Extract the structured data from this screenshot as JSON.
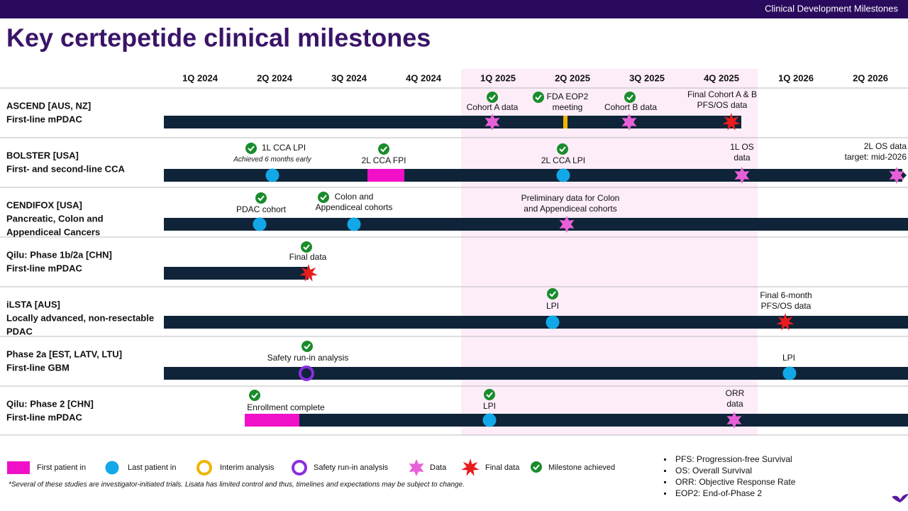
{
  "header": {
    "section": "Clinical Development Milestones",
    "title": "Key certepetide clinical milestones"
  },
  "quarters": [
    "1Q 2024",
    "2Q 2024",
    "3Q 2024",
    "4Q 2024",
    "1Q 2025",
    "2Q 2025",
    "3Q 2025",
    "4Q 2025",
    "1Q 2026",
    "2Q 2026"
  ],
  "rows": [
    {
      "label": [
        "ASCEND [AUS, NZ]",
        "First-line mPDAC"
      ],
      "events": [
        {
          "label": [
            "Cohort A data"
          ]
        },
        {
          "label": [
            "FDA EOP2",
            "meeting"
          ]
        },
        {
          "label": [
            "Cohort B data"
          ]
        },
        {
          "label": [
            "Final Cohort A & B",
            "PFS/OS data"
          ]
        }
      ]
    },
    {
      "label": [
        "BOLSTER [USA]",
        "First- and second-line CCA"
      ],
      "events": [
        {
          "label": [
            "1L CCA LPI"
          ],
          "note": "Achieved 6 months early"
        },
        {
          "label": [
            "2L CCA FPI"
          ]
        },
        {
          "label": [
            "2L CCA LPI"
          ]
        },
        {
          "label": [
            "1L OS",
            "data"
          ]
        },
        {
          "label": [
            "2L OS data",
            "target: mid-2026"
          ]
        }
      ]
    },
    {
      "label": [
        "CENDIFOX [USA]",
        "Pancreatic, Colon and",
        "Appendiceal Cancers"
      ],
      "events": [
        {
          "label": [
            "PDAC cohort"
          ]
        },
        {
          "label": [
            "Colon and",
            "Appendiceal cohorts"
          ]
        },
        {
          "label": [
            "Preliminary data for Colon",
            "and Appendiceal cohorts"
          ]
        }
      ]
    },
    {
      "label": [
        "Qilu: Phase 1b/2a [CHN]",
        "First-line mPDAC"
      ],
      "events": [
        {
          "label": [
            "Final data"
          ]
        }
      ]
    },
    {
      "label": [
        "iLSTA [AUS]",
        "Locally advanced, non-resectable",
        "PDAC"
      ],
      "events": [
        {
          "label": [
            "LPI"
          ]
        },
        {
          "label": [
            "Final 6-month",
            "PFS/OS data"
          ]
        }
      ]
    },
    {
      "label": [
        "Phase 2a [EST, LATV, LTU]",
        "First-line GBM"
      ],
      "events": [
        {
          "label": [
            "Safety run-in analysis"
          ]
        },
        {
          "label": [
            "LPI"
          ]
        }
      ]
    },
    {
      "label": [
        "Qilu: Phase 2 [CHN]",
        "First-line mPDAC"
      ],
      "events": [
        {
          "label": [
            "Enrollment complete"
          ]
        },
        {
          "label": [
            "LPI"
          ]
        },
        {
          "label": [
            "ORR",
            "data"
          ]
        }
      ]
    }
  ],
  "legend": [
    "First patient in",
    "Last patient in",
    "Interim analysis",
    "Safety run-in analysis",
    "Data",
    "Final data",
    "Milestone achieved"
  ],
  "footnote": "*Several of these studies are investigator-initiated trials. Lisata has limited control and thus, timelines and expectations may be subject to change.",
  "abbreviations": [
    "PFS: Progression-free Survival",
    "OS: Overall Survival",
    "ORR: Objective Response Rate",
    "EOP2: End-of-Phase 2"
  ]
}
